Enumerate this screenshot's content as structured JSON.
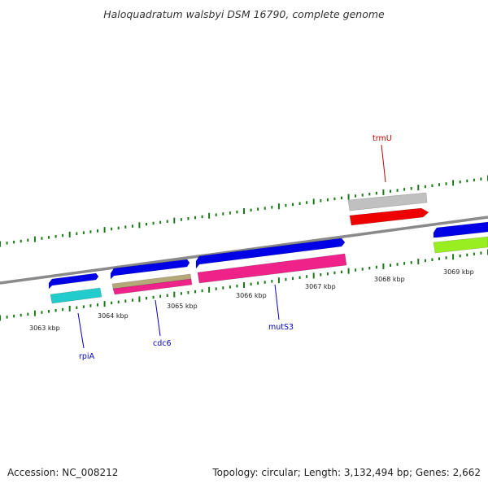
{
  "title": "Haloquadratum walsbyi DSM 16790, complete genome",
  "footer": {
    "accession": "Accession: NC_008212",
    "topology": "Topology: circular; Length: 3,132,494 bp; Genes: 2,662"
  },
  "kbp_labels": [
    "3063 kbp",
    "3064 kbp",
    "3065 kbp",
    "3066 kbp",
    "3067 kbp",
    "3068 kbp",
    "3069 kbp"
  ],
  "gene_labels": {
    "rpiA": "rpiA",
    "cdc6": "cdc6",
    "mutS3": "mutS3",
    "trmU": "trmU"
  },
  "colors": {
    "backbone": "#8a8a8a",
    "tick": "#1a7a1a",
    "forward_gene": "#0000e6",
    "rpiA": "#22cccc",
    "cdc6_upper": "#b5a878",
    "cdc6_lower": "#ee2288",
    "mutS3": "#ee2288",
    "trmU_upper": "#c0c0c0",
    "trmU_lower": "#ee0000",
    "right_lower": "#99ee22",
    "forward_label": "#0000c0",
    "reverse_label": "#c00000"
  }
}
